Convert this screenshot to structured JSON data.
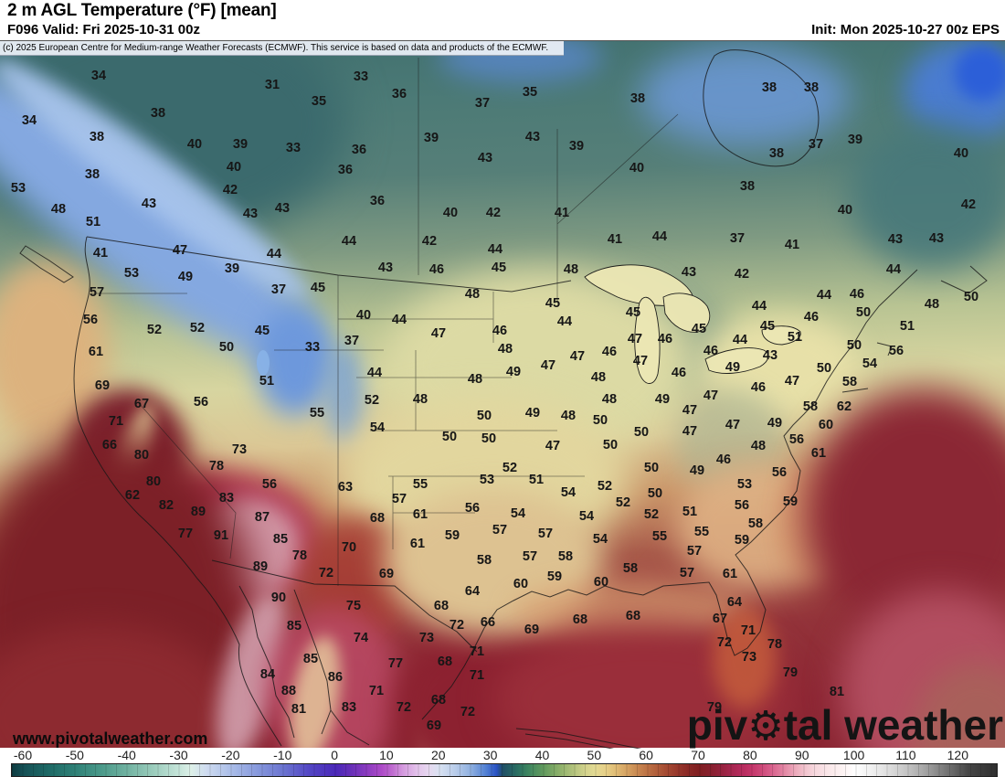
{
  "header": {
    "title": "2 m AGL Temperature (°F) [mean]",
    "valid": "F096 Valid: Fri 2025-10-31 00z",
    "init": "Init: Mon 2025-10-27 00z EPS"
  },
  "map": {
    "copyright": "(c) 2025 European Centre for Medium-range Weather Forecasts (ECMWF). This service is based on data and products of the ECMWF.",
    "site_url": "www.pivotalweather.com",
    "brand": {
      "prefix": "piv",
      "suffix": "tal weather",
      "gear_icon": "⚙"
    },
    "temperature_labels": [
      [
        34,
        108,
        82
      ],
      [
        31,
        298,
        92
      ],
      [
        35,
        349,
        110
      ],
      [
        34,
        32,
        131
      ],
      [
        38,
        173,
        123
      ],
      [
        38,
        106,
        149
      ],
      [
        40,
        213,
        157
      ],
      [
        39,
        263,
        157
      ],
      [
        33,
        321,
        161
      ],
      [
        40,
        256,
        182
      ],
      [
        38,
        101,
        190
      ],
      [
        42,
        252,
        207
      ],
      [
        53,
        20,
        205
      ],
      [
        48,
        64,
        228
      ],
      [
        43,
        163,
        222
      ],
      [
        43,
        309,
        227
      ],
      [
        43,
        274,
        233
      ],
      [
        51,
        102,
        242
      ],
      [
        47,
        197,
        273
      ],
      [
        41,
        110,
        276
      ],
      [
        44,
        300,
        277
      ],
      [
        33,
        395,
        83
      ],
      [
        36,
        437,
        102
      ],
      [
        35,
        580,
        100
      ],
      [
        37,
        528,
        112
      ],
      [
        38,
        698,
        107
      ],
      [
        39,
        472,
        150
      ],
      [
        43,
        583,
        149
      ],
      [
        39,
        631,
        159
      ],
      [
        36,
        393,
        163
      ],
      [
        36,
        378,
        185
      ],
      [
        43,
        531,
        172
      ],
      [
        40,
        697,
        183
      ],
      [
        36,
        413,
        219
      ],
      [
        40,
        493,
        232
      ],
      [
        42,
        540,
        232
      ],
      [
        41,
        615,
        232
      ],
      [
        41,
        673,
        261
      ],
      [
        44,
        722,
        258
      ],
      [
        44,
        382,
        263
      ],
      [
        42,
        470,
        263
      ],
      [
        44,
        542,
        272
      ],
      [
        38,
        842,
        95
      ],
      [
        38,
        888,
        95
      ],
      [
        39,
        936,
        152
      ],
      [
        37,
        893,
        157
      ],
      [
        38,
        850,
        167
      ],
      [
        40,
        1052,
        167
      ],
      [
        38,
        818,
        203
      ],
      [
        40,
        925,
        229
      ],
      [
        42,
        1060,
        223
      ],
      [
        37,
        807,
        260
      ],
      [
        41,
        867,
        267
      ],
      [
        43,
        980,
        261
      ],
      [
        43,
        1025,
        260
      ],
      [
        53,
        144,
        298
      ],
      [
        49,
        203,
        302
      ],
      [
        39,
        254,
        293
      ],
      [
        57,
        106,
        319
      ],
      [
        37,
        305,
        316
      ],
      [
        45,
        348,
        314
      ],
      [
        56,
        99,
        349
      ],
      [
        52,
        169,
        360
      ],
      [
        52,
        216,
        358
      ],
      [
        45,
        287,
        361
      ],
      [
        33,
        342,
        379
      ],
      [
        50,
        248,
        379
      ],
      [
        61,
        105,
        384
      ],
      [
        69,
        112,
        421
      ],
      [
        51,
        292,
        416
      ],
      [
        67,
        155,
        441
      ],
      [
        56,
        220,
        439
      ],
      [
        55,
        347,
        451
      ],
      [
        71,
        127,
        460
      ],
      [
        66,
        120,
        486
      ],
      [
        80,
        155,
        497
      ],
      [
        73,
        262,
        491
      ],
      [
        43,
        422,
        292
      ],
      [
        46,
        478,
        294
      ],
      [
        45,
        546,
        292
      ],
      [
        48,
        625,
        294
      ],
      [
        48,
        517,
        321
      ],
      [
        45,
        605,
        331
      ],
      [
        40,
        398,
        344
      ],
      [
        44,
        437,
        349
      ],
      [
        45,
        693,
        341
      ],
      [
        44,
        618,
        351
      ],
      [
        47,
        480,
        364
      ],
      [
        46,
        547,
        361
      ],
      [
        37,
        385,
        372
      ],
      [
        47,
        695,
        370
      ],
      [
        46,
        728,
        370
      ],
      [
        46,
        667,
        384
      ],
      [
        48,
        553,
        381
      ],
      [
        47,
        632,
        389
      ],
      [
        47,
        701,
        394
      ],
      [
        44,
        410,
        407
      ],
      [
        47,
        600,
        399
      ],
      [
        49,
        562,
        406
      ],
      [
        48,
        655,
        412
      ],
      [
        48,
        520,
        414
      ],
      [
        52,
        407,
        437
      ],
      [
        48,
        460,
        436
      ],
      [
        48,
        667,
        436
      ],
      [
        49,
        725,
        436
      ],
      [
        54,
        413,
        467
      ],
      [
        50,
        530,
        454
      ],
      [
        49,
        583,
        451
      ],
      [
        48,
        622,
        454
      ],
      [
        50,
        657,
        459
      ],
      [
        50,
        702,
        472
      ],
      [
        50,
        492,
        477
      ],
      [
        50,
        535,
        479
      ],
      [
        47,
        605,
        487
      ],
      [
        50,
        668,
        486
      ],
      [
        43,
        754,
        297
      ],
      [
        42,
        812,
        299
      ],
      [
        44,
        978,
        294
      ],
      [
        44,
        902,
        322
      ],
      [
        46,
        938,
        321
      ],
      [
        50,
        1063,
        324
      ],
      [
        48,
        1020,
        332
      ],
      [
        44,
        831,
        334
      ],
      [
        50,
        945,
        341
      ],
      [
        46,
        888,
        346
      ],
      [
        45,
        840,
        356
      ],
      [
        45,
        765,
        359
      ],
      [
        51,
        993,
        356
      ],
      [
        51,
        870,
        368
      ],
      [
        44,
        810,
        371
      ],
      [
        46,
        778,
        383
      ],
      [
        50,
        935,
        377
      ],
      [
        56,
        981,
        383
      ],
      [
        43,
        843,
        388
      ],
      [
        49,
        802,
        401
      ],
      [
        54,
        952,
        397
      ],
      [
        46,
        743,
        407
      ],
      [
        50,
        902,
        402
      ],
      [
        47,
        867,
        416
      ],
      [
        58,
        930,
        417
      ],
      [
        46,
        830,
        423
      ],
      [
        47,
        778,
        432
      ],
      [
        47,
        755,
        448
      ],
      [
        58,
        887,
        444
      ],
      [
        62,
        924,
        444
      ],
      [
        49,
        848,
        462
      ],
      [
        47,
        802,
        464
      ],
      [
        47,
        755,
        471
      ],
      [
        60,
        904,
        464
      ],
      [
        56,
        872,
        480
      ],
      [
        48,
        830,
        487
      ],
      [
        61,
        896,
        495
      ],
      [
        78,
        237,
        509
      ],
      [
        80,
        168,
        526
      ],
      [
        56,
        295,
        529
      ],
      [
        62,
        145,
        541
      ],
      [
        83,
        248,
        544
      ],
      [
        82,
        182,
        552
      ],
      [
        89,
        217,
        559
      ],
      [
        87,
        287,
        565
      ],
      [
        77,
        203,
        583
      ],
      [
        91,
        242,
        585
      ],
      [
        85,
        307,
        589
      ],
      [
        78,
        328,
        607
      ],
      [
        72,
        357,
        626
      ],
      [
        89,
        285,
        619
      ],
      [
        90,
        305,
        653
      ],
      [
        85,
        322,
        684
      ],
      [
        52,
        558,
        511
      ],
      [
        50,
        713,
        511
      ],
      [
        53,
        533,
        524
      ],
      [
        51,
        587,
        524
      ],
      [
        55,
        460,
        529
      ],
      [
        54,
        622,
        538
      ],
      [
        52,
        662,
        531
      ],
      [
        50,
        717,
        539
      ],
      [
        63,
        378,
        532
      ],
      [
        57,
        437,
        545
      ],
      [
        52,
        682,
        549
      ],
      [
        52,
        713,
        562
      ],
      [
        68,
        413,
        566
      ],
      [
        61,
        460,
        562
      ],
      [
        56,
        517,
        555
      ],
      [
        54,
        567,
        561
      ],
      [
        54,
        642,
        564
      ],
      [
        57,
        547,
        579
      ],
      [
        55,
        722,
        586
      ],
      [
        59,
        495,
        585
      ],
      [
        57,
        597,
        583
      ],
      [
        61,
        457,
        594
      ],
      [
        54,
        657,
        589
      ],
      [
        70,
        382,
        598
      ],
      [
        57,
        580,
        608
      ],
      [
        58,
        619,
        608
      ],
      [
        58,
        530,
        612
      ],
      [
        58,
        690,
        621
      ],
      [
        69,
        423,
        627
      ],
      [
        59,
        607,
        630
      ],
      [
        60,
        570,
        638
      ],
      [
        60,
        658,
        636
      ],
      [
        64,
        517,
        646
      ],
      [
        75,
        387,
        662
      ],
      [
        68,
        483,
        662
      ],
      [
        66,
        534,
        680
      ],
      [
        68,
        635,
        677
      ],
      [
        68,
        693,
        673
      ],
      [
        72,
        500,
        683
      ],
      [
        69,
        582,
        688
      ],
      [
        74,
        395,
        697
      ],
      [
        73,
        467,
        697
      ],
      [
        71,
        522,
        712
      ],
      [
        46,
        792,
        502
      ],
      [
        49,
        763,
        514
      ],
      [
        56,
        853,
        516
      ],
      [
        53,
        815,
        529
      ],
      [
        56,
        812,
        552
      ],
      [
        59,
        865,
        548
      ],
      [
        51,
        755,
        559
      ],
      [
        58,
        827,
        572
      ],
      [
        55,
        768,
        581
      ],
      [
        59,
        812,
        590
      ],
      [
        57,
        760,
        602
      ],
      [
        57,
        752,
        626
      ],
      [
        61,
        799,
        627
      ],
      [
        64,
        804,
        658
      ],
      [
        67,
        788,
        676
      ],
      [
        71,
        819,
        689
      ],
      [
        72,
        793,
        702
      ],
      [
        78,
        848,
        704
      ],
      [
        73,
        820,
        718
      ],
      [
        85,
        340,
        720
      ],
      [
        77,
        433,
        725
      ],
      [
        68,
        487,
        723
      ],
      [
        86,
        367,
        740
      ],
      [
        71,
        522,
        738
      ],
      [
        84,
        293,
        737
      ],
      [
        88,
        316,
        755
      ],
      [
        71,
        412,
        755
      ],
      [
        68,
        480,
        765
      ],
      [
        81,
        327,
        775
      ],
      [
        83,
        382,
        773
      ],
      [
        72,
        442,
        773
      ],
      [
        72,
        512,
        778
      ],
      [
        69,
        475,
        793
      ],
      [
        79,
        865,
        735
      ],
      [
        81,
        916,
        756
      ],
      [
        79,
        782,
        773
      ]
    ]
  },
  "colorbar": {
    "ticks": [
      "-60",
      "-50",
      "-40",
      "-30",
      "-20",
      "-10",
      "0",
      "10",
      "20",
      "30",
      "40",
      "50",
      "60",
      "70",
      "80",
      "90",
      "100",
      "110",
      "120"
    ]
  }
}
